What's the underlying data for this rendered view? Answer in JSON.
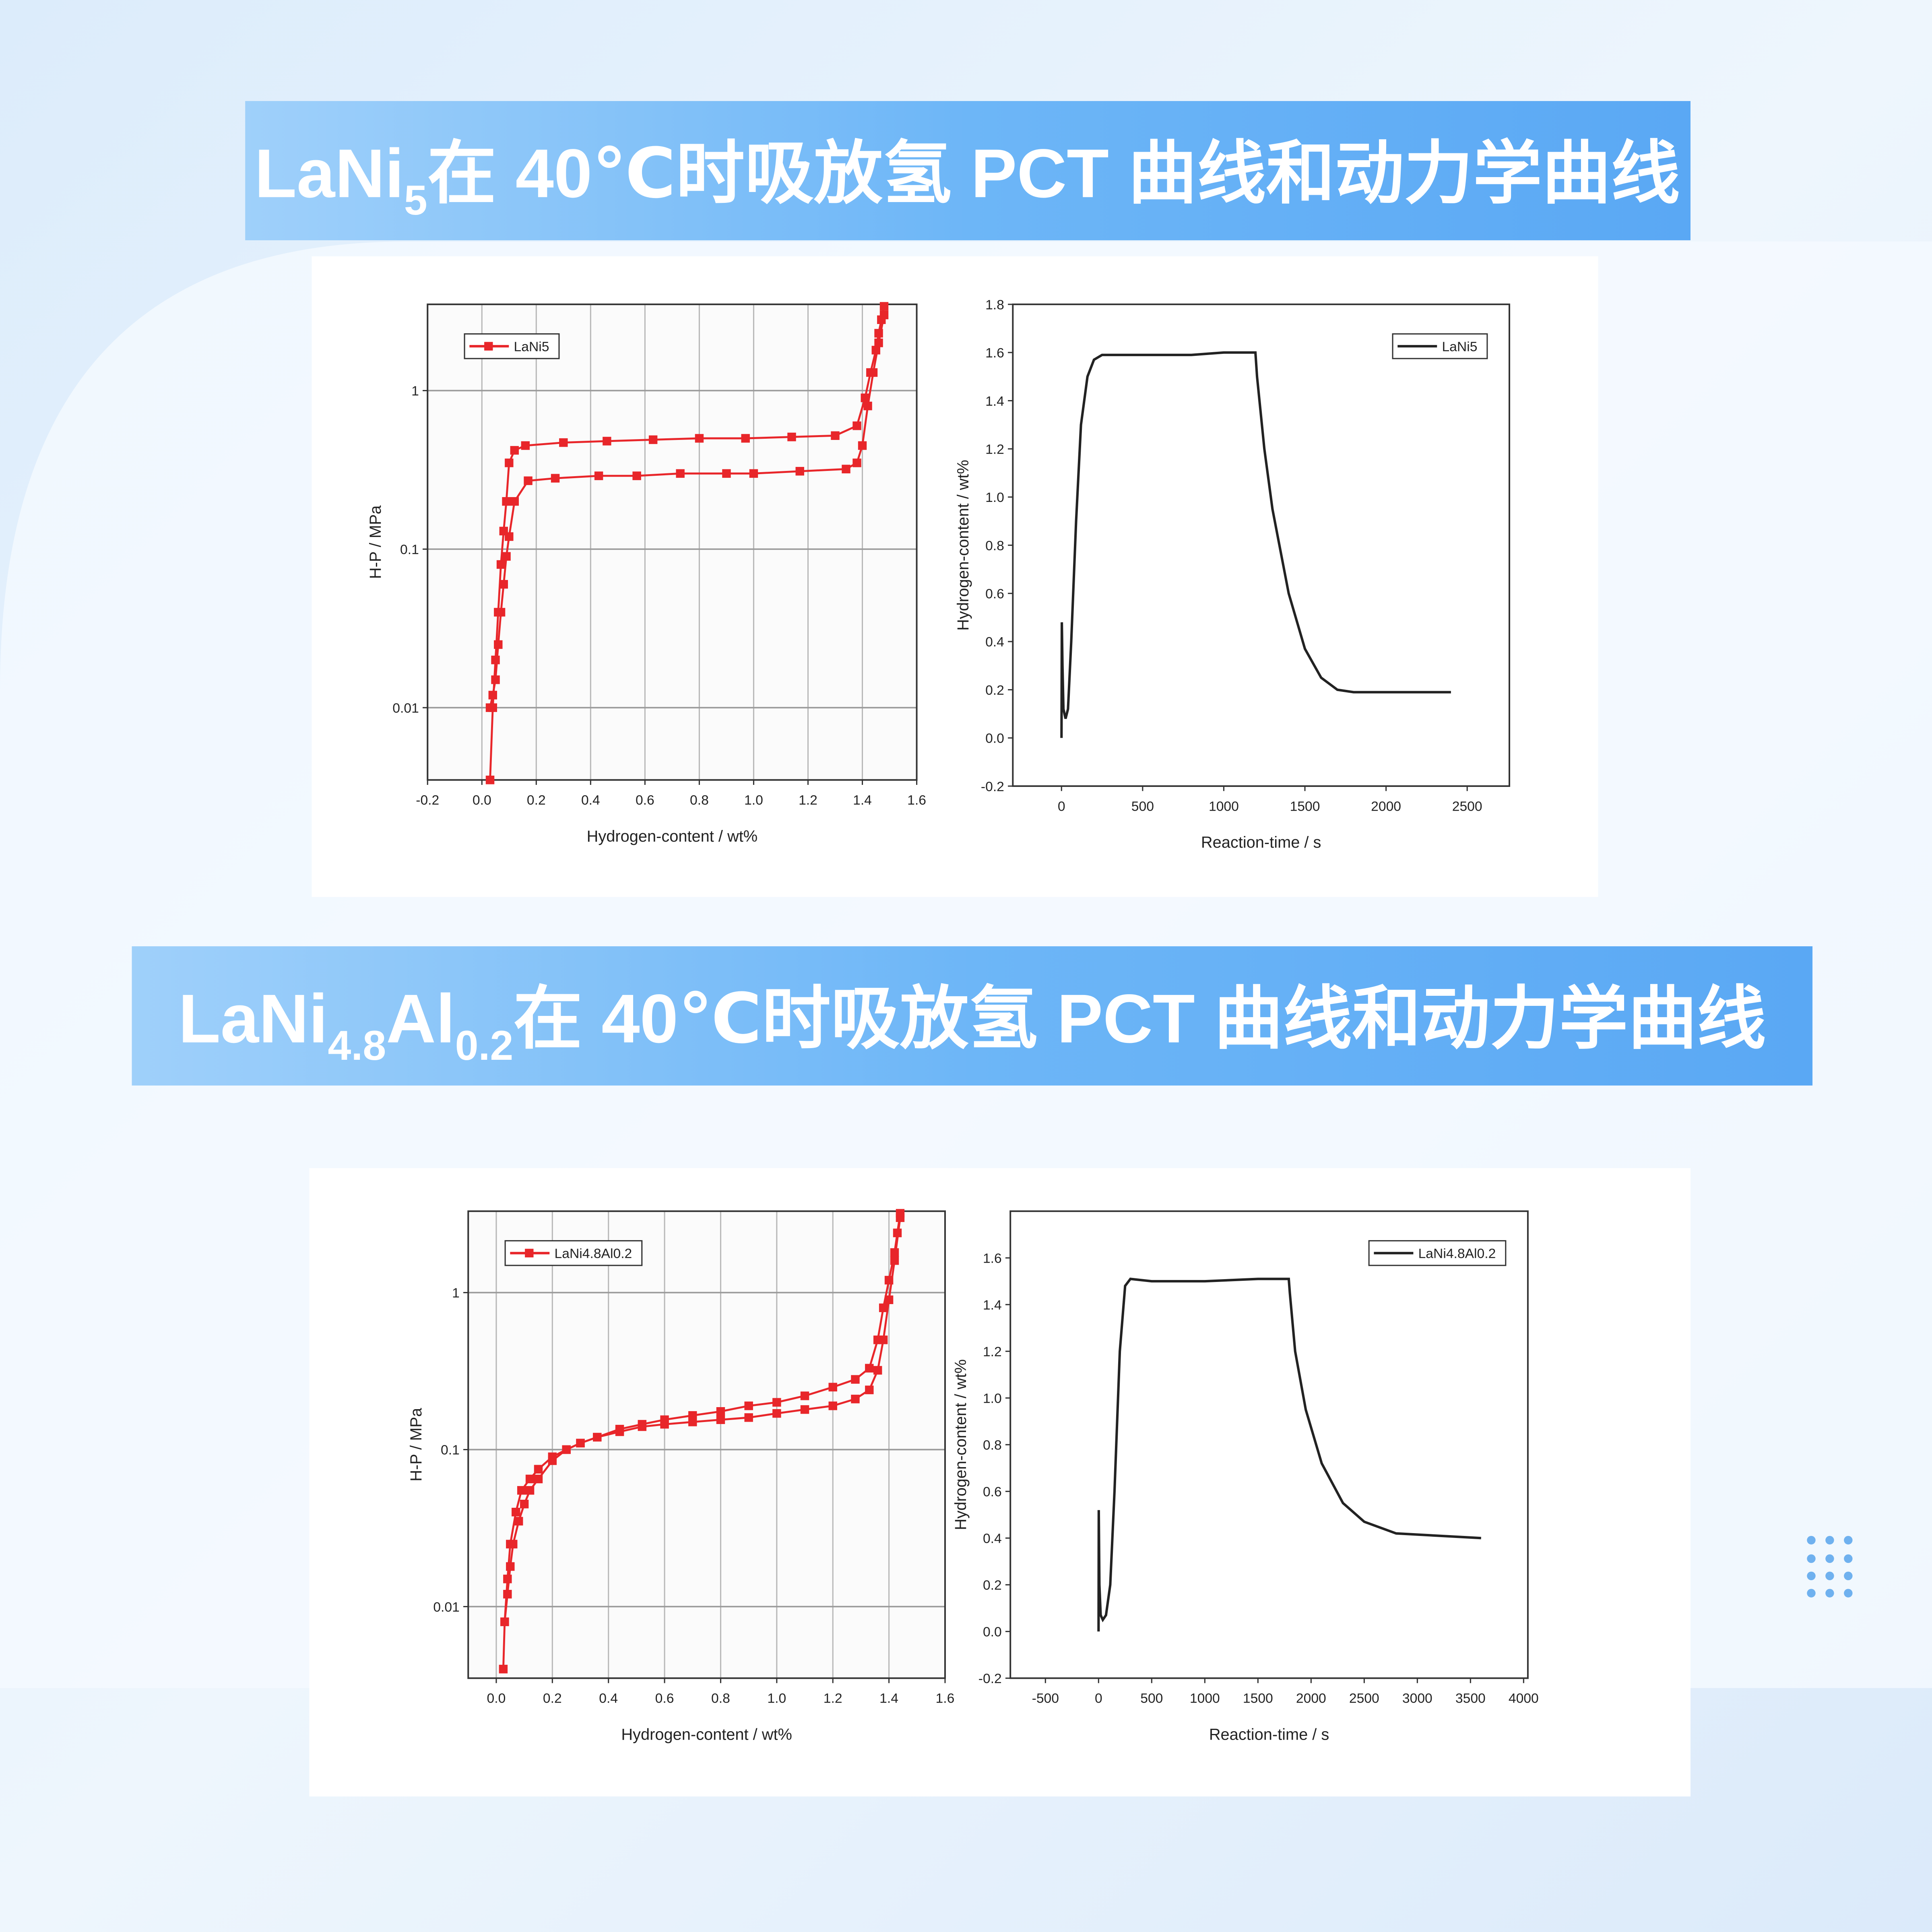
{
  "banners": [
    {
      "parts": [
        "LaNi",
        "5",
        "在 40℃时吸放氢 PCT 曲线和动力学曲线"
      ]
    },
    {
      "parts": [
        "LaNi",
        "4.8",
        "Al",
        "0.2",
        "在 40℃时吸放氢 PCT 曲线和动力学曲线"
      ]
    }
  ],
  "chart_data": [
    {
      "type": "line",
      "x_label": "Hydrogen-content / wt%",
      "y_label": "H-P / MPa",
      "yscale": "log",
      "grid": true,
      "marker": "square",
      "legend": "upper left",
      "xlim": [
        -0.2,
        1.6
      ],
      "xticks": [
        -0.2,
        {
          "value": 0,
          "label": "0.0"
        },
        0.2,
        0.4,
        0.6,
        0.8,
        {
          "value": 1,
          "label": "1.0"
        },
        1.2,
        1.4,
        1.6
      ],
      "ylim": [
        0.0035,
        3.5
      ],
      "yticks": [
        0.01,
        0.1,
        1
      ],
      "series": [
        {
          "name": "LaNi5",
          "color": "#e8262a",
          "x": [
            0.03,
            0.04,
            0.05,
            0.06,
            0.07,
            0.08,
            0.09,
            0.1,
            0.12,
            0.16,
            0.3,
            0.46,
            0.63,
            0.8,
            0.97,
            1.14,
            1.3,
            1.38,
            1.41,
            1.43,
            1.45,
            1.46,
            1.47,
            1.48
          ],
          "values": [
            0.0035,
            0.01,
            0.02,
            0.04,
            0.08,
            0.13,
            0.2,
            0.35,
            0.42,
            0.45,
            0.47,
            0.48,
            0.49,
            0.5,
            0.5,
            0.51,
            0.52,
            0.6,
            0.9,
            1.3,
            1.8,
            2.3,
            2.8,
            3.4
          ]
        },
        {
          "color": "#e8262a",
          "x": [
            1.48,
            1.46,
            1.44,
            1.42,
            1.4,
            1.38,
            1.34,
            1.17,
            1.0,
            0.9,
            0.73,
            0.57,
            0.43,
            0.27,
            0.17,
            0.12,
            0.1,
            0.09,
            0.08,
            0.07,
            0.06,
            0.05,
            0.04,
            0.03
          ],
          "values": [
            3.0,
            2.0,
            1.3,
            0.8,
            0.45,
            0.35,
            0.32,
            0.31,
            0.3,
            0.3,
            0.3,
            0.29,
            0.29,
            0.28,
            0.27,
            0.2,
            0.12,
            0.09,
            0.06,
            0.04,
            0.025,
            0.015,
            0.012,
            0.01
          ]
        }
      ]
    },
    {
      "type": "line",
      "x_label": "Reaction-time / s",
      "y_label": "Hydrogen-content / wt%",
      "grid": false,
      "legend": "upper right",
      "xlim": [
        -300,
        2760
      ],
      "xticks": [
        0,
        500,
        1000,
        1500,
        2000,
        2500
      ],
      "ylim": [
        -0.2,
        1.8
      ],
      "yticks": [
        -0.2,
        {
          "value": 0,
          "label": "0.0"
        },
        0.2,
        0.4,
        0.6,
        0.8,
        {
          "value": 1,
          "label": "1.0"
        },
        1.2,
        1.4,
        1.6,
        1.8
      ],
      "series": [
        {
          "name": "LaNi5",
          "color": "#222222",
          "x": [
            0,
            2,
            6,
            12,
            25,
            40,
            60,
            90,
            120,
            160,
            200,
            250,
            300,
            400,
            600,
            800,
            1000,
            1195,
            1205,
            1250,
            1300,
            1400,
            1500,
            1600,
            1700,
            1800,
            2000,
            2400
          ],
          "values": [
            0.0,
            0.48,
            0.3,
            0.12,
            0.08,
            0.12,
            0.4,
            0.9,
            1.3,
            1.5,
            1.57,
            1.59,
            1.59,
            1.59,
            1.59,
            1.59,
            1.6,
            1.6,
            1.5,
            1.2,
            0.95,
            0.6,
            0.37,
            0.25,
            0.2,
            0.19,
            0.19,
            0.19
          ]
        }
      ]
    },
    {
      "type": "line",
      "x_label": "Hydrogen-content / wt%",
      "y_label": "H-P / MPa",
      "yscale": "log",
      "grid": true,
      "marker": "square",
      "legend": "upper left",
      "xlim": [
        -0.1,
        1.6
      ],
      "xticks": [
        {
          "value": 0,
          "label": "0.0"
        },
        0.2,
        0.4,
        0.6,
        0.8,
        {
          "value": 1,
          "label": "1.0"
        },
        1.2,
        1.4,
        1.6
      ],
      "ylim": [
        0.0035,
        3.3
      ],
      "yticks": [
        0.01,
        0.1,
        1
      ],
      "series": [
        {
          "name": "LaNi4.8Al0.2",
          "color": "#e8262a",
          "x": [
            0.025,
            0.03,
            0.04,
            0.05,
            0.07,
            0.09,
            0.12,
            0.15,
            0.2,
            0.25,
            0.3,
            0.36,
            0.44,
            0.52,
            0.6,
            0.7,
            0.8,
            0.9,
            1.0,
            1.1,
            1.2,
            1.28,
            1.33,
            1.36,
            1.38,
            1.4,
            1.42,
            1.43,
            1.44
          ],
          "values": [
            0.004,
            0.008,
            0.015,
            0.025,
            0.04,
            0.055,
            0.065,
            0.075,
            0.09,
            0.1,
            0.11,
            0.12,
            0.135,
            0.145,
            0.155,
            0.165,
            0.175,
            0.19,
            0.2,
            0.22,
            0.25,
            0.28,
            0.33,
            0.5,
            0.8,
            1.2,
            1.8,
            2.4,
            3.2
          ]
        },
        {
          "color": "#e8262a",
          "x": [
            1.44,
            1.42,
            1.4,
            1.38,
            1.36,
            1.33,
            1.28,
            1.2,
            1.1,
            1.0,
            0.9,
            0.8,
            0.7,
            0.6,
            0.52,
            0.44,
            0.36,
            0.3,
            0.25,
            0.2,
            0.15,
            0.12,
            0.1,
            0.08,
            0.06,
            0.05,
            0.04,
            0.03
          ],
          "values": [
            3.0,
            1.6,
            0.9,
            0.5,
            0.32,
            0.24,
            0.21,
            0.19,
            0.18,
            0.17,
            0.16,
            0.155,
            0.15,
            0.145,
            0.14,
            0.13,
            0.12,
            0.11,
            0.1,
            0.085,
            0.065,
            0.055,
            0.045,
            0.035,
            0.025,
            0.018,
            0.012,
            0.008
          ]
        }
      ]
    },
    {
      "type": "line",
      "x_label": "Reaction-time / s",
      "y_label": "Hydrogen-content / wt%",
      "grid": false,
      "legend": "upper right",
      "xlim": [
        -830,
        4040
      ],
      "xticks": [
        -500,
        0,
        500,
        1000,
        1500,
        2000,
        2500,
        3000,
        3500,
        4000
      ],
      "ylim": [
        -0.2,
        1.8
      ],
      "yticks": [
        -0.2,
        {
          "value": 0,
          "label": "0.0"
        },
        0.2,
        0.4,
        0.6,
        0.8,
        {
          "value": 1,
          "label": "1.0"
        },
        1.2,
        1.4,
        1.6
      ],
      "series": [
        {
          "name": "LaNi4.8Al0.2",
          "color": "#222222",
          "x": [
            0,
            2,
            8,
            20,
            40,
            70,
            110,
            150,
            200,
            250,
            300,
            500,
            1000,
            1500,
            1790,
            1800,
            1850,
            1950,
            2100,
            2300,
            2500,
            2800,
            3200,
            3600
          ],
          "values": [
            0.0,
            0.52,
            0.2,
            0.07,
            0.05,
            0.07,
            0.2,
            0.6,
            1.2,
            1.48,
            1.51,
            1.5,
            1.5,
            1.51,
            1.51,
            1.45,
            1.2,
            0.95,
            0.72,
            0.55,
            0.47,
            0.42,
            0.41,
            0.4
          ]
        }
      ]
    }
  ]
}
